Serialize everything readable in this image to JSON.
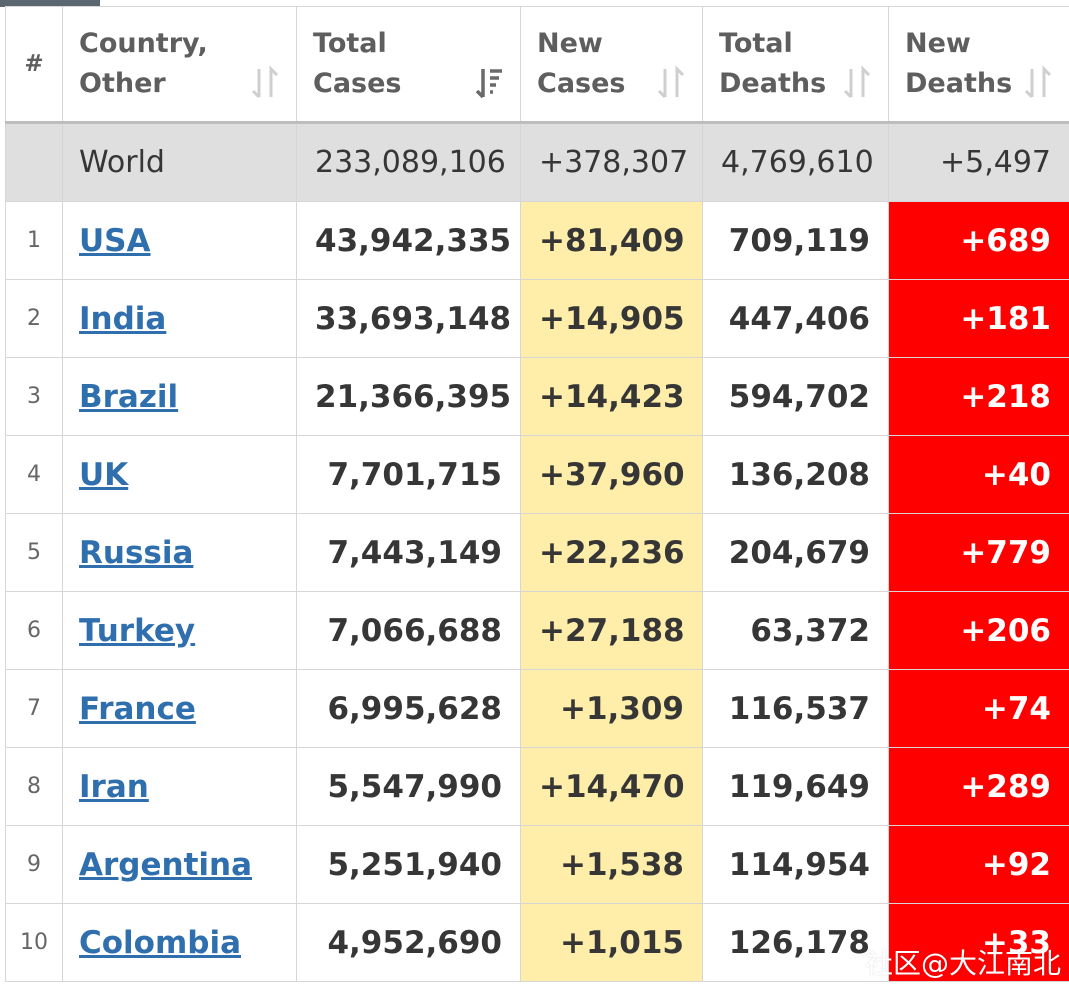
{
  "headers": {
    "num": "#",
    "country": "Country, Other",
    "total_cases": "Total Cases",
    "new_cases": "New Cases",
    "total_deaths": "Total Deaths",
    "new_deaths": "New Deaths"
  },
  "world": {
    "country": "World",
    "total_cases": "233,089,106",
    "new_cases": "+378,307",
    "total_deaths": "4,769,610",
    "new_deaths": "+5,497"
  },
  "rows": [
    {
      "rank": "1",
      "country": "USA",
      "total_cases": "43,942,335",
      "new_cases": "+81,409",
      "total_deaths": "709,119",
      "new_deaths": "+689"
    },
    {
      "rank": "2",
      "country": "India",
      "total_cases": "33,693,148",
      "new_cases": "+14,905",
      "total_deaths": "447,406",
      "new_deaths": "+181"
    },
    {
      "rank": "3",
      "country": "Brazil",
      "total_cases": "21,366,395",
      "new_cases": "+14,423",
      "total_deaths": "594,702",
      "new_deaths": "+218"
    },
    {
      "rank": "4",
      "country": "UK",
      "total_cases": "7,701,715",
      "new_cases": "+37,960",
      "total_deaths": "136,208",
      "new_deaths": "+40"
    },
    {
      "rank": "5",
      "country": "Russia",
      "total_cases": "7,443,149",
      "new_cases": "+22,236",
      "total_deaths": "204,679",
      "new_deaths": "+779"
    },
    {
      "rank": "6",
      "country": "Turkey",
      "total_cases": "7,066,688",
      "new_cases": "+27,188",
      "total_deaths": "63,372",
      "new_deaths": "+206"
    },
    {
      "rank": "7",
      "country": "France",
      "total_cases": "6,995,628",
      "new_cases": "+1,309",
      "total_deaths": "116,537",
      "new_deaths": "+74"
    },
    {
      "rank": "8",
      "country": "Iran",
      "total_cases": "5,547,990",
      "new_cases": "+14,470",
      "total_deaths": "119,649",
      "new_deaths": "+289"
    },
    {
      "rank": "9",
      "country": "Argentina",
      "total_cases": "5,251,940",
      "new_cases": "+1,538",
      "total_deaths": "114,954",
      "new_deaths": "+92"
    },
    {
      "rank": "10",
      "country": "Colombia",
      "total_cases": "4,952,690",
      "new_cases": "+1,015",
      "total_deaths": "126,178",
      "new_deaths": "+33"
    }
  ],
  "watermark": "社区@大江南北",
  "colors": {
    "new_cases_bg": "#ffeeaa",
    "new_deaths_bg": "#ff0000",
    "world_row_bg": "#dfdfdf",
    "link": "#2f6fad"
  }
}
